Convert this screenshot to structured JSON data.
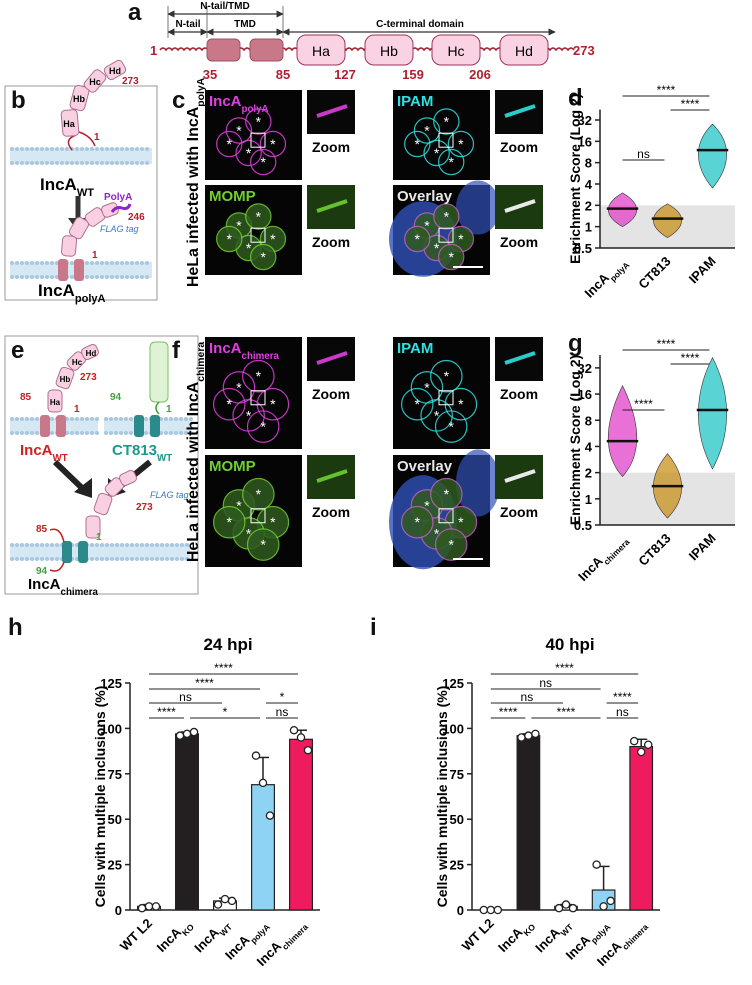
{
  "panel_a": {
    "label": "a",
    "top_span": "N-tail/TMD",
    "n_tail": "N-tail",
    "tmd": "TMD",
    "c_terminal": "C-terminal domain",
    "helices": [
      "Ha",
      "Hb",
      "Hc",
      "Hd"
    ],
    "start": 1,
    "end": 273,
    "boundaries": [
      35,
      85,
      127,
      159,
      206
    ]
  },
  "panel_b": {
    "label": "b",
    "wt_helices": [
      "Ha",
      "Hb",
      "Hc",
      "Hd"
    ],
    "wt_end": 273,
    "wt_start": 1,
    "wt_name": "IncA",
    "wt_sub": "WT",
    "polya_tag": "PolyA",
    "polya_end": 246,
    "flag_tag": "FLAG tag",
    "polya_start": 1,
    "polya_name": "IncA",
    "polya_sub": "polyA"
  },
  "panel_c": {
    "label": "c",
    "side_label": "HeLa infected with IncA",
    "side_sub": "polyA",
    "marker": "*",
    "images": [
      {
        "title": "IncA",
        "sub": "polyA",
        "zoom": "Zoom"
      },
      {
        "title": "IPAM",
        "zoom": "Zoom"
      },
      {
        "title": "MOMP",
        "zoom": "Zoom"
      },
      {
        "title": "Overlay",
        "zoom": "Zoom"
      }
    ]
  },
  "panel_e": {
    "label": "e",
    "wt_helices": [
      "Ha",
      "Hb",
      "Hc",
      "Hd"
    ],
    "wt_tmd_end": 85,
    "wt_start": 1,
    "wt_end": 273,
    "wt_name": "IncA",
    "wt_sub": "WT",
    "ct_tmd_end": 94,
    "ct_start": 1,
    "ct_name": "CT813",
    "ct_sub": "WT",
    "chimera_tmd_ends": [
      85,
      94
    ],
    "chimera_start": 1,
    "chimera_end": 273,
    "flag_tag": "FLAG tag",
    "chimera_name": "IncA",
    "chimera_sub": "chimera"
  },
  "panel_f": {
    "label": "f",
    "side_label": "HeLa infected with IncA",
    "side_sub": "chimera",
    "marker": "*",
    "images": [
      {
        "title": "IncA",
        "sub": "chimera",
        "zoom": "Zoom"
      },
      {
        "title": "IPAM",
        "zoom": "Zoom"
      },
      {
        "title": "MOMP",
        "zoom": "Zoom"
      },
      {
        "title": "Overlay",
        "zoom": "Zoom"
      }
    ]
  },
  "chart_data": [
    {
      "panel_label": "d",
      "type": "swarm",
      "y_label": "Enrichment Score (Log 2)",
      "log_scale": true,
      "ylim": [
        0.5,
        45
      ],
      "yticks": [
        0.5,
        1,
        2,
        4,
        8,
        16,
        32
      ],
      "shade_below": 2,
      "categories": [
        {
          "name": "IncA",
          "sub": "polyA"
        },
        {
          "name": "CT813"
        },
        {
          "name": "IPAM"
        }
      ],
      "colors": [
        "#e040c8",
        "#c8901c",
        "#22c4c4"
      ],
      "medians": [
        1.8,
        1.3,
        12
      ],
      "mins": [
        1.0,
        0.7,
        3.5
      ],
      "maxs": [
        3.0,
        2.1,
        28
      ],
      "significance": [
        "****",
        "****",
        "ns"
      ]
    },
    {
      "panel_label": "g",
      "type": "swarm",
      "y_label": "Enrichment Score (Log 2)",
      "log_scale": true,
      "ylim": [
        0.5,
        45
      ],
      "yticks": [
        0.5,
        1,
        2,
        4,
        8,
        16,
        32
      ],
      "shade_below": 2,
      "categories": [
        {
          "name": "IncA",
          "sub": "chimera"
        },
        {
          "name": "CT813"
        },
        {
          "name": "IPAM"
        }
      ],
      "colors": [
        "#e040c8",
        "#c8901c",
        "#22c4c4"
      ],
      "medians": [
        4.6,
        1.4,
        10.5
      ],
      "mins": [
        1.8,
        0.6,
        2.2
      ],
      "maxs": [
        20,
        3.3,
        42
      ],
      "significance": [
        "****",
        "****",
        "****"
      ]
    },
    {
      "panel_label": "h",
      "type": "bar",
      "title": "24 hpi",
      "y_label": "Cells with multiple inclusions (%)",
      "ylim": [
        0,
        125
      ],
      "yticks": [
        0,
        25,
        50,
        75,
        100,
        125
      ],
      "categories": [
        {
          "name": "WT L2"
        },
        {
          "name": "IncA",
          "sub": "KO"
        },
        {
          "name": "IncA",
          "sub": "WT"
        },
        {
          "name": "IncA",
          "sub": "polyA"
        },
        {
          "name": "IncA",
          "sub": "chimera"
        }
      ],
      "colors": [
        "#ffffff",
        "#231f20",
        "#ffffff",
        "#8fd3f4",
        "#ee1c5f"
      ],
      "values": [
        2,
        97,
        5,
        69,
        94
      ],
      "errors": [
        1,
        1,
        1.5,
        15,
        5
      ],
      "points": [
        [
          1,
          2,
          2
        ],
        [
          96,
          97,
          98
        ],
        [
          3,
          6,
          5
        ],
        [
          85,
          70,
          52
        ],
        [
          99,
          95,
          88
        ]
      ],
      "significance": [
        "****",
        "****",
        "ns",
        "*",
        "****",
        "*",
        "ns"
      ]
    },
    {
      "panel_label": "i",
      "type": "bar",
      "title": "40 hpi",
      "y_label": "Cells with multiple inclusions (%)",
      "ylim": [
        0,
        125
      ],
      "yticks": [
        0,
        25,
        50,
        75,
        100,
        125
      ],
      "categories": [
        {
          "name": "WT L2"
        },
        {
          "name": "IncA",
          "sub": "KO"
        },
        {
          "name": "IncA",
          "sub": "WT"
        },
        {
          "name": "IncA",
          "sub": "polyA"
        },
        {
          "name": "IncA",
          "sub": "chimera"
        }
      ],
      "colors": [
        "#ffffff",
        "#231f20",
        "#ffffff",
        "#8fd3f4",
        "#ee1c5f"
      ],
      "values": [
        0,
        96,
        2,
        11,
        90
      ],
      "errors": [
        0,
        1,
        1,
        13,
        4
      ],
      "points": [
        [
          0,
          0,
          0
        ],
        [
          95,
          96,
          97
        ],
        [
          1,
          3,
          1
        ],
        [
          25,
          2,
          5
        ],
        [
          93,
          87,
          91
        ]
      ],
      "significance": [
        "****",
        "ns",
        "ns",
        "****",
        "****",
        "****",
        "ns"
      ]
    }
  ]
}
